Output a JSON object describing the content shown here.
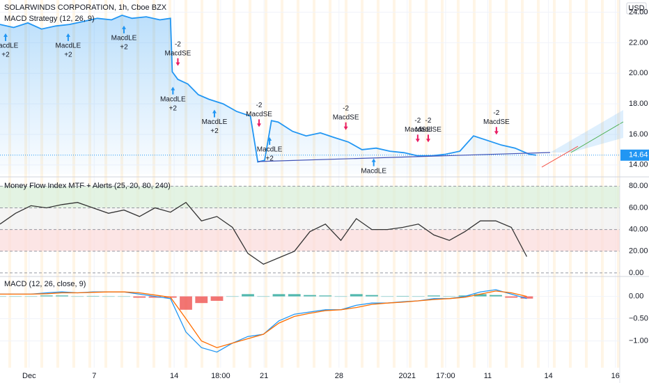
{
  "chart_data": [
    {
      "type": "line",
      "title": "SOLARWINDS CORPORATION, 1h, Cboe BZX",
      "subtitle": "MACD Strategy (12, 26, 9)",
      "currency": "USD",
      "last_value": 14.64,
      "xlim": [
        0,
        100
      ],
      "ylim": [
        13.4,
        24.8
      ],
      "yticks": [
        {
          "value": 14,
          "label": "14.00"
        },
        {
          "value": 16,
          "label": "16.00"
        },
        {
          "value": 18,
          "label": "18.00"
        },
        {
          "value": 20,
          "label": "20.00"
        },
        {
          "value": 22,
          "label": "22.00"
        },
        {
          "value": 24,
          "label": "24.00"
        }
      ],
      "x": [
        0,
        2.2,
        4.5,
        6.7,
        9.0,
        11.2,
        13.5,
        15.7,
        18.0,
        19.7,
        21.3,
        23.6,
        25.8,
        27.5,
        27.8,
        28.7,
        30.3,
        32.0,
        33.7,
        36.0,
        38.2,
        40.4,
        41.6,
        42.7,
        43.8,
        44.9,
        47.2,
        49.4,
        51.7,
        53.9,
        56.2,
        58.4,
        60.7,
        62.9,
        65.2,
        67.4,
        69.7,
        71.9,
        74.2,
        76.4,
        78.7,
        80.9,
        83.1,
        85.4,
        86.5
      ],
      "series": [
        {
          "name": "Price",
          "color": "#2196f3",
          "values": [
            23.2,
            23.0,
            23.3,
            22.9,
            23.1,
            23.2,
            23.4,
            23.6,
            23.5,
            23.8,
            23.6,
            23.7,
            23.5,
            23.6,
            20.1,
            19.6,
            19.3,
            18.6,
            18.3,
            18.0,
            17.5,
            17.2,
            14.2,
            14.3,
            16.9,
            16.8,
            16.2,
            15.9,
            16.1,
            15.8,
            15.5,
            15.0,
            15.1,
            14.9,
            14.8,
            14.6,
            14.6,
            14.7,
            14.9,
            15.9,
            15.6,
            15.3,
            15.1,
            14.7,
            14.64
          ]
        }
      ],
      "signals": [
        {
          "x": 0.9,
          "y": 22.8,
          "side": "long",
          "label": "MacdLE",
          "qty": "+2"
        },
        {
          "x": 11.0,
          "y": 22.8,
          "side": "long",
          "label": "MacdLE",
          "qty": "+2"
        },
        {
          "x": 20.0,
          "y": 23.3,
          "side": "long",
          "label": "MacdLE",
          "qty": "+2"
        },
        {
          "x": 27.9,
          "y": 19.3,
          "side": "long",
          "label": "MacdLE",
          "qty": "+2"
        },
        {
          "x": 28.7,
          "y": 20.3,
          "side": "short",
          "label": "MacdSE",
          "qty": "-2"
        },
        {
          "x": 34.6,
          "y": 17.8,
          "side": "long",
          "label": "MacdLE",
          "qty": "+2"
        },
        {
          "x": 41.8,
          "y": 16.3,
          "side": "short",
          "label": "MacdSE",
          "qty": "-2"
        },
        {
          "x": 43.5,
          "y": 16.0,
          "side": "long",
          "label": "MacdLE",
          "qty": "+2"
        },
        {
          "x": 55.8,
          "y": 16.1,
          "side": "short",
          "label": "MacdSE",
          "qty": "-2"
        },
        {
          "x": 60.3,
          "y": 14.6,
          "side": "long",
          "label": "MacdLE"
        },
        {
          "x": 67.4,
          "y": 15.3,
          "side": "short",
          "label": "MacdSE",
          "qty": "-2"
        },
        {
          "x": 69.1,
          "y": 15.3,
          "side": "short",
          "label": "MacdSE",
          "qty": "-2"
        },
        {
          "x": 80.1,
          "y": 15.8,
          "side": "short",
          "label": "MacdSE",
          "qty": "-2"
        }
      ]
    },
    {
      "type": "line",
      "title": "Money Flow Index MTF + Alerts (25, 20, 80, 240)",
      "xlim": [
        0,
        100
      ],
      "ylim": [
        -2,
        86
      ],
      "yticks": [
        {
          "value": 0,
          "label": "0.00"
        },
        {
          "value": 20,
          "label": "20.00"
        },
        {
          "value": 40,
          "label": "40.00"
        },
        {
          "value": 60,
          "label": "60.00"
        },
        {
          "value": 80,
          "label": "80.00"
        }
      ],
      "zones": [
        {
          "from": 60,
          "to": 80,
          "color": "#d7eed7"
        },
        {
          "from": 40,
          "to": 60,
          "color": "#efefef"
        },
        {
          "from": 20,
          "to": 40,
          "color": "#fbdada"
        }
      ],
      "x": [
        0,
        2.5,
        5,
        7.5,
        10,
        12.5,
        15,
        17.5,
        20,
        22.5,
        25,
        27.5,
        30,
        32.5,
        35,
        37.5,
        40,
        42.5,
        45,
        47.5,
        50,
        52.5,
        55,
        57.5,
        60,
        62.5,
        65,
        67.5,
        70,
        72.5,
        75,
        77.5,
        80,
        82.5,
        85
      ],
      "series": [
        {
          "name": "MFI",
          "color": "#333333",
          "values": [
            45,
            55,
            62,
            60,
            63,
            65,
            60,
            55,
            58,
            52,
            60,
            56,
            65,
            48,
            52,
            42,
            18,
            8,
            14,
            20,
            38,
            45,
            30,
            50,
            40,
            40,
            42,
            45,
            35,
            30,
            38,
            48,
            48,
            42,
            15
          ]
        }
      ]
    },
    {
      "type": "line",
      "title": "MACD (12, 26, close, 9)",
      "xlim": [
        0,
        100
      ],
      "ylim": [
        -1.6,
        0.4
      ],
      "yticks": [
        {
          "value": -1,
          "label": "−1.00"
        },
        {
          "value": -0.5,
          "label": "−0.50"
        },
        {
          "value": 0,
          "label": "0.00"
        }
      ],
      "xticks": [
        {
          "value": 4.7,
          "label": "Dec"
        },
        {
          "value": 15.2,
          "label": "7"
        },
        {
          "value": 28.1,
          "label": "14"
        },
        {
          "value": 35.6,
          "label": "18:00"
        },
        {
          "value": 42.6,
          "label": "21"
        },
        {
          "value": 54.7,
          "label": "28"
        },
        {
          "value": 65.7,
          "label": "2021"
        },
        {
          "value": 71.9,
          "label": "17:00"
        },
        {
          "value": 78.7,
          "label": "11"
        },
        {
          "value": 88.5,
          "label": "14"
        },
        {
          "value": 99.3,
          "label": "16"
        }
      ],
      "x": [
        0,
        2.5,
        5,
        7.5,
        10,
        12.5,
        15,
        17.5,
        20,
        22.5,
        25,
        27.5,
        30,
        32.5,
        35,
        37.5,
        40,
        42.5,
        45,
        47.5,
        50,
        52.5,
        55,
        57.5,
        60,
        62.5,
        65,
        67.5,
        70,
        72.5,
        75,
        77.5,
        80,
        82.5,
        85
      ],
      "series": [
        {
          "name": "Histogram",
          "type": "bar",
          "color": "#26a69a",
          "negative_color": "#ef5350",
          "values": [
            0,
            0,
            0,
            0.02,
            0.02,
            0,
            0.01,
            0,
            0,
            -0.03,
            -0.03,
            -0.03,
            -0.3,
            -0.15,
            -0.1,
            0,
            0.05,
            0,
            0.05,
            0.05,
            0.03,
            0.02,
            0,
            0.05,
            0.03,
            0,
            0.01,
            0,
            0.02,
            0,
            0.02,
            0.05,
            0.03,
            -0.03,
            -0.05
          ]
        },
        {
          "name": "MACD",
          "color": "#2196f3",
          "values": [
            0.05,
            0.05,
            0.05,
            0.08,
            0.1,
            0.08,
            0.1,
            0.1,
            0.1,
            0.05,
            0,
            -0.05,
            -0.8,
            -1.15,
            -1.25,
            -1.05,
            -0.9,
            -0.85,
            -0.55,
            -0.4,
            -0.35,
            -0.3,
            -0.3,
            -0.2,
            -0.15,
            -0.15,
            -0.12,
            -0.1,
            -0.05,
            -0.05,
            0,
            0.1,
            0.15,
            0.05,
            -0.05
          ]
        },
        {
          "name": "Signal",
          "color": "#ff6d00",
          "values": [
            0.05,
            0.05,
            0.05,
            0.06,
            0.08,
            0.08,
            0.09,
            0.1,
            0.1,
            0.08,
            0.03,
            -0.02,
            -0.5,
            -1.0,
            -1.15,
            -1.05,
            -0.95,
            -0.85,
            -0.6,
            -0.45,
            -0.38,
            -0.32,
            -0.3,
            -0.25,
            -0.18,
            -0.15,
            -0.13,
            -0.1,
            -0.07,
            -0.05,
            -0.02,
            0.05,
            0.12,
            0.08,
            0
          ]
        }
      ]
    }
  ]
}
